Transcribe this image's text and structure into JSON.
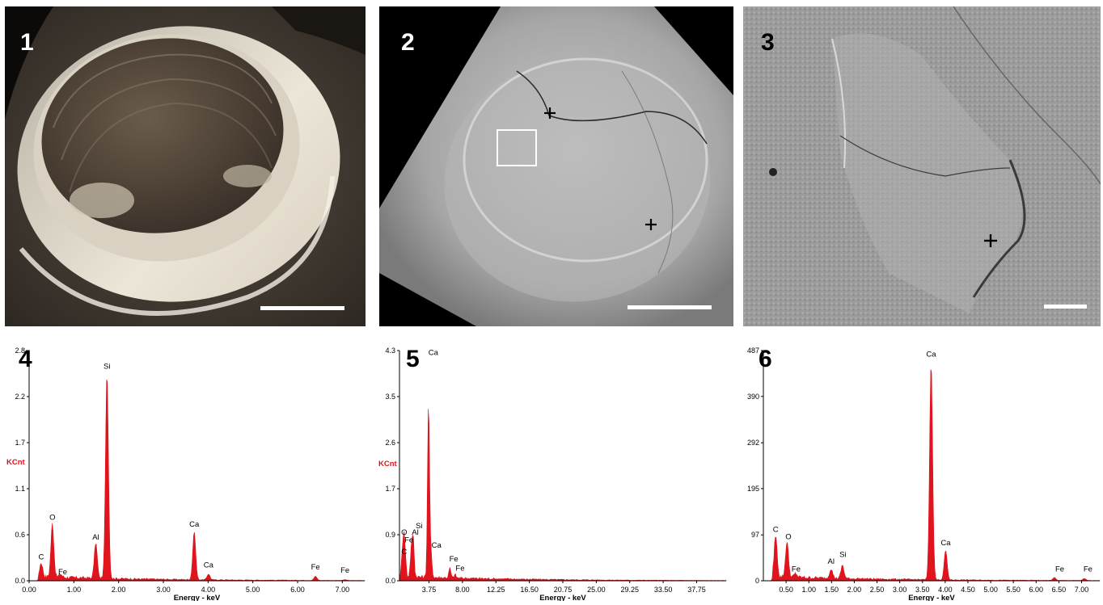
{
  "panels": {
    "p1": {
      "label": "1"
    },
    "p2": {
      "label": "2"
    },
    "p3": {
      "label": "3"
    },
    "p4": {
      "label": "4"
    },
    "p5": {
      "label": "5"
    },
    "p6": {
      "label": "6"
    }
  },
  "colors": {
    "spectrum": "#e0141c",
    "axis": "#000000"
  },
  "chart_data": [
    {
      "type": "area",
      "panel": "4",
      "xlabel": "Energy - keV",
      "ylabel": "KCnt",
      "xlim": [
        0,
        7.5
      ],
      "ylim": [
        0,
        2.8
      ],
      "xticks": [
        "0.00",
        "1.00",
        "2.00",
        "3.00",
        "4.00",
        "5.00",
        "6.00",
        "7.00"
      ],
      "xtick_values": [
        0,
        1,
        2,
        3,
        4,
        5,
        6,
        7
      ],
      "yticks": [
        "0.0",
        "0.6",
        "1.1",
        "1.7",
        "2.2",
        "2.8"
      ],
      "ytick_values": [
        0.0,
        0.56,
        1.12,
        1.68,
        2.24,
        2.8
      ],
      "peaks": [
        {
          "element": "C",
          "energy": 0.27,
          "height": 0.17
        },
        {
          "element": "O",
          "energy": 0.52,
          "height": 0.65
        },
        {
          "element": "Fe",
          "energy": 0.7,
          "height": 0.04
        },
        {
          "element": "Al",
          "energy": 1.49,
          "height": 0.43
        },
        {
          "element": "Si",
          "energy": 1.74,
          "height": 2.5
        },
        {
          "element": "Ca",
          "energy": 3.69,
          "height": 0.58
        },
        {
          "element": "Ca",
          "energy": 4.01,
          "height": 0.07
        },
        {
          "element": "Fe",
          "energy": 6.4,
          "height": 0.05
        },
        {
          "element": "Fe",
          "energy": 7.06,
          "height": 0.01
        }
      ],
      "annotations": [
        {
          "text": "C",
          "energy": 0.27,
          "y": 0.26
        },
        {
          "text": "O",
          "energy": 0.52,
          "y": 0.74
        },
        {
          "text": "Fe",
          "energy": 0.75,
          "y": 0.08
        },
        {
          "text": "Al",
          "energy": 1.49,
          "y": 0.5
        },
        {
          "text": "Si",
          "energy": 1.74,
          "y": 2.58
        },
        {
          "text": "Ca",
          "energy": 3.69,
          "y": 0.66
        },
        {
          "text": "Ca",
          "energy": 4.01,
          "y": 0.16
        },
        {
          "text": "Fe",
          "energy": 6.4,
          "y": 0.14
        },
        {
          "text": "Fe",
          "energy": 7.06,
          "y": 0.1
        }
      ]
    },
    {
      "type": "area",
      "panel": "5",
      "xlabel": "Energy - keV",
      "ylabel": "KCnt",
      "xlim": [
        0,
        41.5
      ],
      "ylim": [
        0,
        4.3
      ],
      "xticks": [
        "3.75",
        "8.00",
        "12.25",
        "16.50",
        "20.75",
        "25.00",
        "29.25",
        "33.50",
        "37.75"
      ],
      "xtick_values": [
        3.75,
        8.0,
        12.25,
        16.5,
        20.75,
        25.0,
        29.25,
        33.5,
        37.75
      ],
      "yticks": [
        "0.0",
        "0.9",
        "1.7",
        "2.6",
        "3.5",
        "4.3"
      ],
      "ytick_values": [
        0.0,
        0.86,
        1.72,
        2.58,
        3.44,
        4.3
      ],
      "peaks": [
        {
          "element": "C",
          "energy": 0.28,
          "height": 0.3
        },
        {
          "element": "O",
          "energy": 0.52,
          "height": 0.62
        },
        {
          "element": "Fe",
          "energy": 0.7,
          "height": 0.4
        },
        {
          "element": "Al",
          "energy": 1.49,
          "height": 0.45
        },
        {
          "element": "Si",
          "energy": 1.74,
          "height": 0.72
        },
        {
          "element": "Ca",
          "energy": 3.69,
          "height": 3.23
        },
        {
          "element": "Ca",
          "energy": 4.01,
          "height": 0.42
        },
        {
          "element": "Fe",
          "energy": 6.4,
          "height": 0.18
        },
        {
          "element": "Fe",
          "energy": 7.06,
          "height": 0.06
        }
      ],
      "annotations": [
        {
          "text": "Ca",
          "energy": 4.3,
          "y": 4.22
        },
        {
          "text": "O",
          "energy": 0.6,
          "y": 0.86
        },
        {
          "text": "Fe",
          "energy": 1.2,
          "y": 0.72
        },
        {
          "text": "Si",
          "energy": 2.5,
          "y": 0.98
        },
        {
          "text": "Al",
          "energy": 2.0,
          "y": 0.86
        },
        {
          "text": "C",
          "energy": 0.6,
          "y": 0.5
        },
        {
          "text": "Ca",
          "energy": 4.7,
          "y": 0.62
        },
        {
          "text": "Fe",
          "energy": 6.9,
          "y": 0.36
        },
        {
          "text": "Fe",
          "energy": 7.7,
          "y": 0.19
        }
      ]
    },
    {
      "type": "area",
      "panel": "6",
      "xlabel": "Energy - keV",
      "ylabel": "",
      "xlim": [
        0,
        7.4
      ],
      "ylim": [
        0,
        487
      ],
      "xticks": [
        "0.50",
        "1.00",
        "1.50",
        "2.00",
        "2.50",
        "3.00",
        "3.50",
        "4.00",
        "4.50",
        "5.00",
        "5.50",
        "6.00",
        "6.50",
        "7.00"
      ],
      "xtick_values": [
        0.5,
        1.0,
        1.5,
        2.0,
        2.5,
        3.0,
        3.5,
        4.0,
        4.5,
        5.0,
        5.5,
        6.0,
        6.5,
        7.0
      ],
      "yticks": [
        "0",
        "97",
        "195",
        "292",
        "390",
        "487"
      ],
      "ytick_values": [
        0,
        97,
        195,
        292,
        390,
        487
      ],
      "peaks": [
        {
          "element": "C",
          "energy": 0.27,
          "height": 88
        },
        {
          "element": "O",
          "energy": 0.52,
          "height": 74
        },
        {
          "element": "Fe",
          "energy": 0.71,
          "height": 8
        },
        {
          "element": "Al",
          "energy": 1.49,
          "height": 20
        },
        {
          "element": "Si",
          "energy": 1.74,
          "height": 28
        },
        {
          "element": "Ca",
          "energy": 3.69,
          "height": 458
        },
        {
          "element": "Ca",
          "energy": 4.01,
          "height": 62
        },
        {
          "element": "Fe",
          "energy": 6.4,
          "height": 6
        },
        {
          "element": "Fe",
          "energy": 7.06,
          "height": 4
        }
      ],
      "annotations": [
        {
          "text": "C",
          "energy": 0.27,
          "y": 103
        },
        {
          "text": "O",
          "energy": 0.55,
          "y": 88
        },
        {
          "text": "Fe",
          "energy": 0.72,
          "y": 20
        },
        {
          "text": "Al",
          "energy": 1.49,
          "y": 36
        },
        {
          "text": "Si",
          "energy": 1.75,
          "y": 50
        },
        {
          "text": "Ca",
          "energy": 3.69,
          "y": 474
        },
        {
          "text": "Ca",
          "energy": 4.01,
          "y": 75
        },
        {
          "text": "Fe",
          "energy": 6.52,
          "y": 20
        },
        {
          "text": "Fe",
          "energy": 7.14,
          "y": 20
        }
      ]
    }
  ]
}
